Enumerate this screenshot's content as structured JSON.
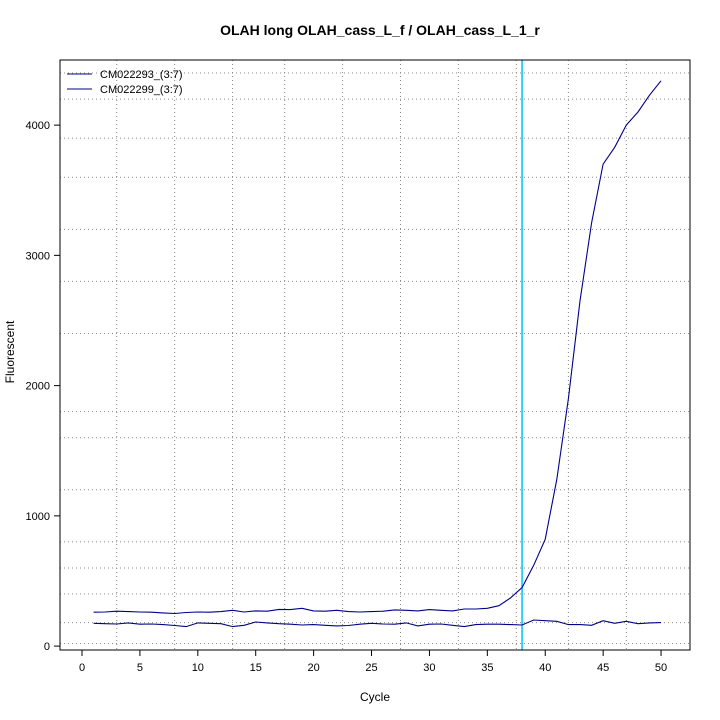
{
  "chart_data": {
    "type": "line",
    "title": "OLAH long OLAH_cass_L_f / OLAH_cass_L_1_r",
    "xlabel": "Cycle",
    "ylabel": "Fluorescent",
    "xlim": [
      -1.9,
      52.5
    ],
    "ylim": [
      -30,
      4500
    ],
    "x_ticks": [
      0,
      5,
      10,
      15,
      20,
      25,
      30,
      35,
      40,
      45,
      50
    ],
    "y_ticks": [
      0,
      1000,
      2000,
      3000,
      4000
    ],
    "grid": true,
    "grid_x": [
      3,
      8,
      13,
      17.5,
      22.5,
      27.5,
      32.5,
      37.5,
      42,
      47
    ],
    "grid_y": [
      20,
      180,
      400,
      600,
      800,
      1200,
      1600,
      1800,
      2400,
      2800,
      3200,
      3600,
      3900,
      4200,
      4400
    ],
    "threshold_cycle": 38,
    "threshold_color": "#00bfff",
    "legend_position": "top-left",
    "x": [
      1,
      2,
      3,
      4,
      5,
      6,
      7,
      8,
      9,
      10,
      11,
      12,
      13,
      14,
      15,
      16,
      17,
      18,
      19,
      20,
      21,
      22,
      23,
      24,
      25,
      26,
      27,
      28,
      29,
      30,
      31,
      32,
      33,
      34,
      35,
      36,
      37,
      38,
      39,
      40,
      41,
      42,
      43,
      44,
      45,
      46,
      47,
      48,
      49,
      50
    ],
    "series": [
      {
        "name": "CM022293_(3:7)",
        "color": "#00008b",
        "values": [
          260,
          262,
          268,
          265,
          262,
          260,
          255,
          250,
          258,
          262,
          260,
          265,
          275,
          262,
          270,
          268,
          282,
          280,
          290,
          270,
          268,
          275,
          265,
          262,
          265,
          268,
          278,
          275,
          270,
          280,
          275,
          270,
          285,
          285,
          290,
          310,
          370,
          450,
          620,
          820,
          1280,
          1900,
          2650,
          3250,
          3700,
          3830,
          4000,
          4100,
          4230,
          4340
        ]
      },
      {
        "name": "CM022299_(3:7)",
        "color": "#00008b",
        "values": [
          175,
          172,
          170,
          178,
          168,
          170,
          165,
          158,
          150,
          178,
          175,
          172,
          150,
          160,
          185,
          178,
          172,
          168,
          162,
          165,
          160,
          155,
          158,
          168,
          175,
          170,
          168,
          178,
          155,
          168,
          170,
          160,
          150,
          165,
          168,
          168,
          165,
          162,
          200,
          195,
          190,
          165,
          165,
          160,
          195,
          175,
          190,
          172,
          178,
          180
        ]
      }
    ]
  }
}
